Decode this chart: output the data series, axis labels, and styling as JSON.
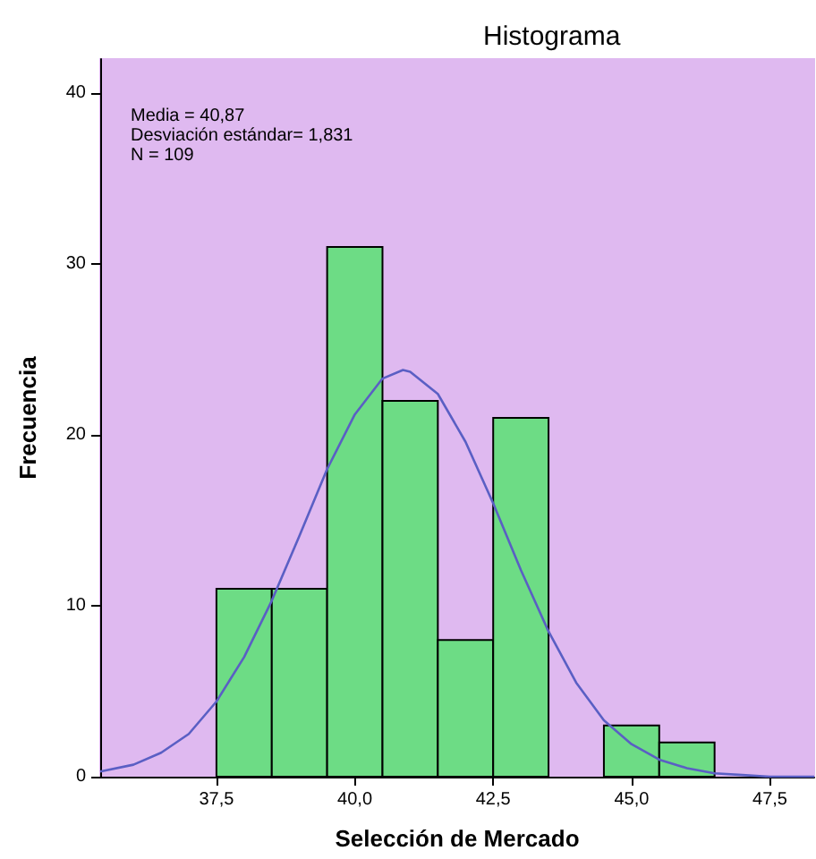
{
  "chart_data": {
    "type": "histogram",
    "title": "Histograma",
    "xlabel": "Selección de Mercado",
    "ylabel": "Frecuencia",
    "annotations": [
      "Media = 40,87",
      "Desviación estándar= 1,831",
      "N = 109"
    ],
    "bins": [
      37.5,
      38.5,
      39.5,
      40.5,
      41.5,
      42.5,
      43.5,
      44.5,
      45.5,
      46.5
    ],
    "series": [
      {
        "color": "#6ddc85",
        "values": [
          11,
          11,
          31,
          22,
          8,
          21,
          0,
          3,
          2
        ]
      },
      {
        "type": "line",
        "color": "#5a5fc4",
        "x": [
          35.4,
          36,
          36.5,
          37,
          37.5,
          38,
          38.5,
          39,
          39.5,
          40,
          40.5,
          40.87,
          41,
          41.5,
          42,
          42.5,
          43,
          43.5,
          44,
          44.5,
          45,
          45.5,
          46,
          46.5,
          47,
          47.5,
          48,
          48.3
        ],
        "values": [
          0.3,
          0.7,
          1.4,
          2.5,
          4.4,
          7,
          10.3,
          14.1,
          18,
          21.2,
          23.3,
          23.8,
          23.7,
          22.4,
          19.6,
          16,
          12.1,
          8.5,
          5.5,
          3.3,
          1.9,
          1,
          0.5,
          0.2,
          0.1,
          0,
          0,
          0
        ]
      }
    ],
    "xlim": [
      35.4,
      48.3
    ],
    "ylim": [
      0,
      42
    ],
    "xticks": [
      {
        "value": 37.5,
        "label": "37,5"
      },
      {
        "value": 40,
        "label": "40,0"
      },
      {
        "value": 42.5,
        "label": "42,5"
      },
      {
        "value": 45,
        "label": "45,0"
      },
      {
        "value": 47.5,
        "label": "47,5"
      }
    ],
    "yticks": [
      0,
      10,
      20,
      30,
      40
    ],
    "grid": false,
    "marker": "none"
  }
}
